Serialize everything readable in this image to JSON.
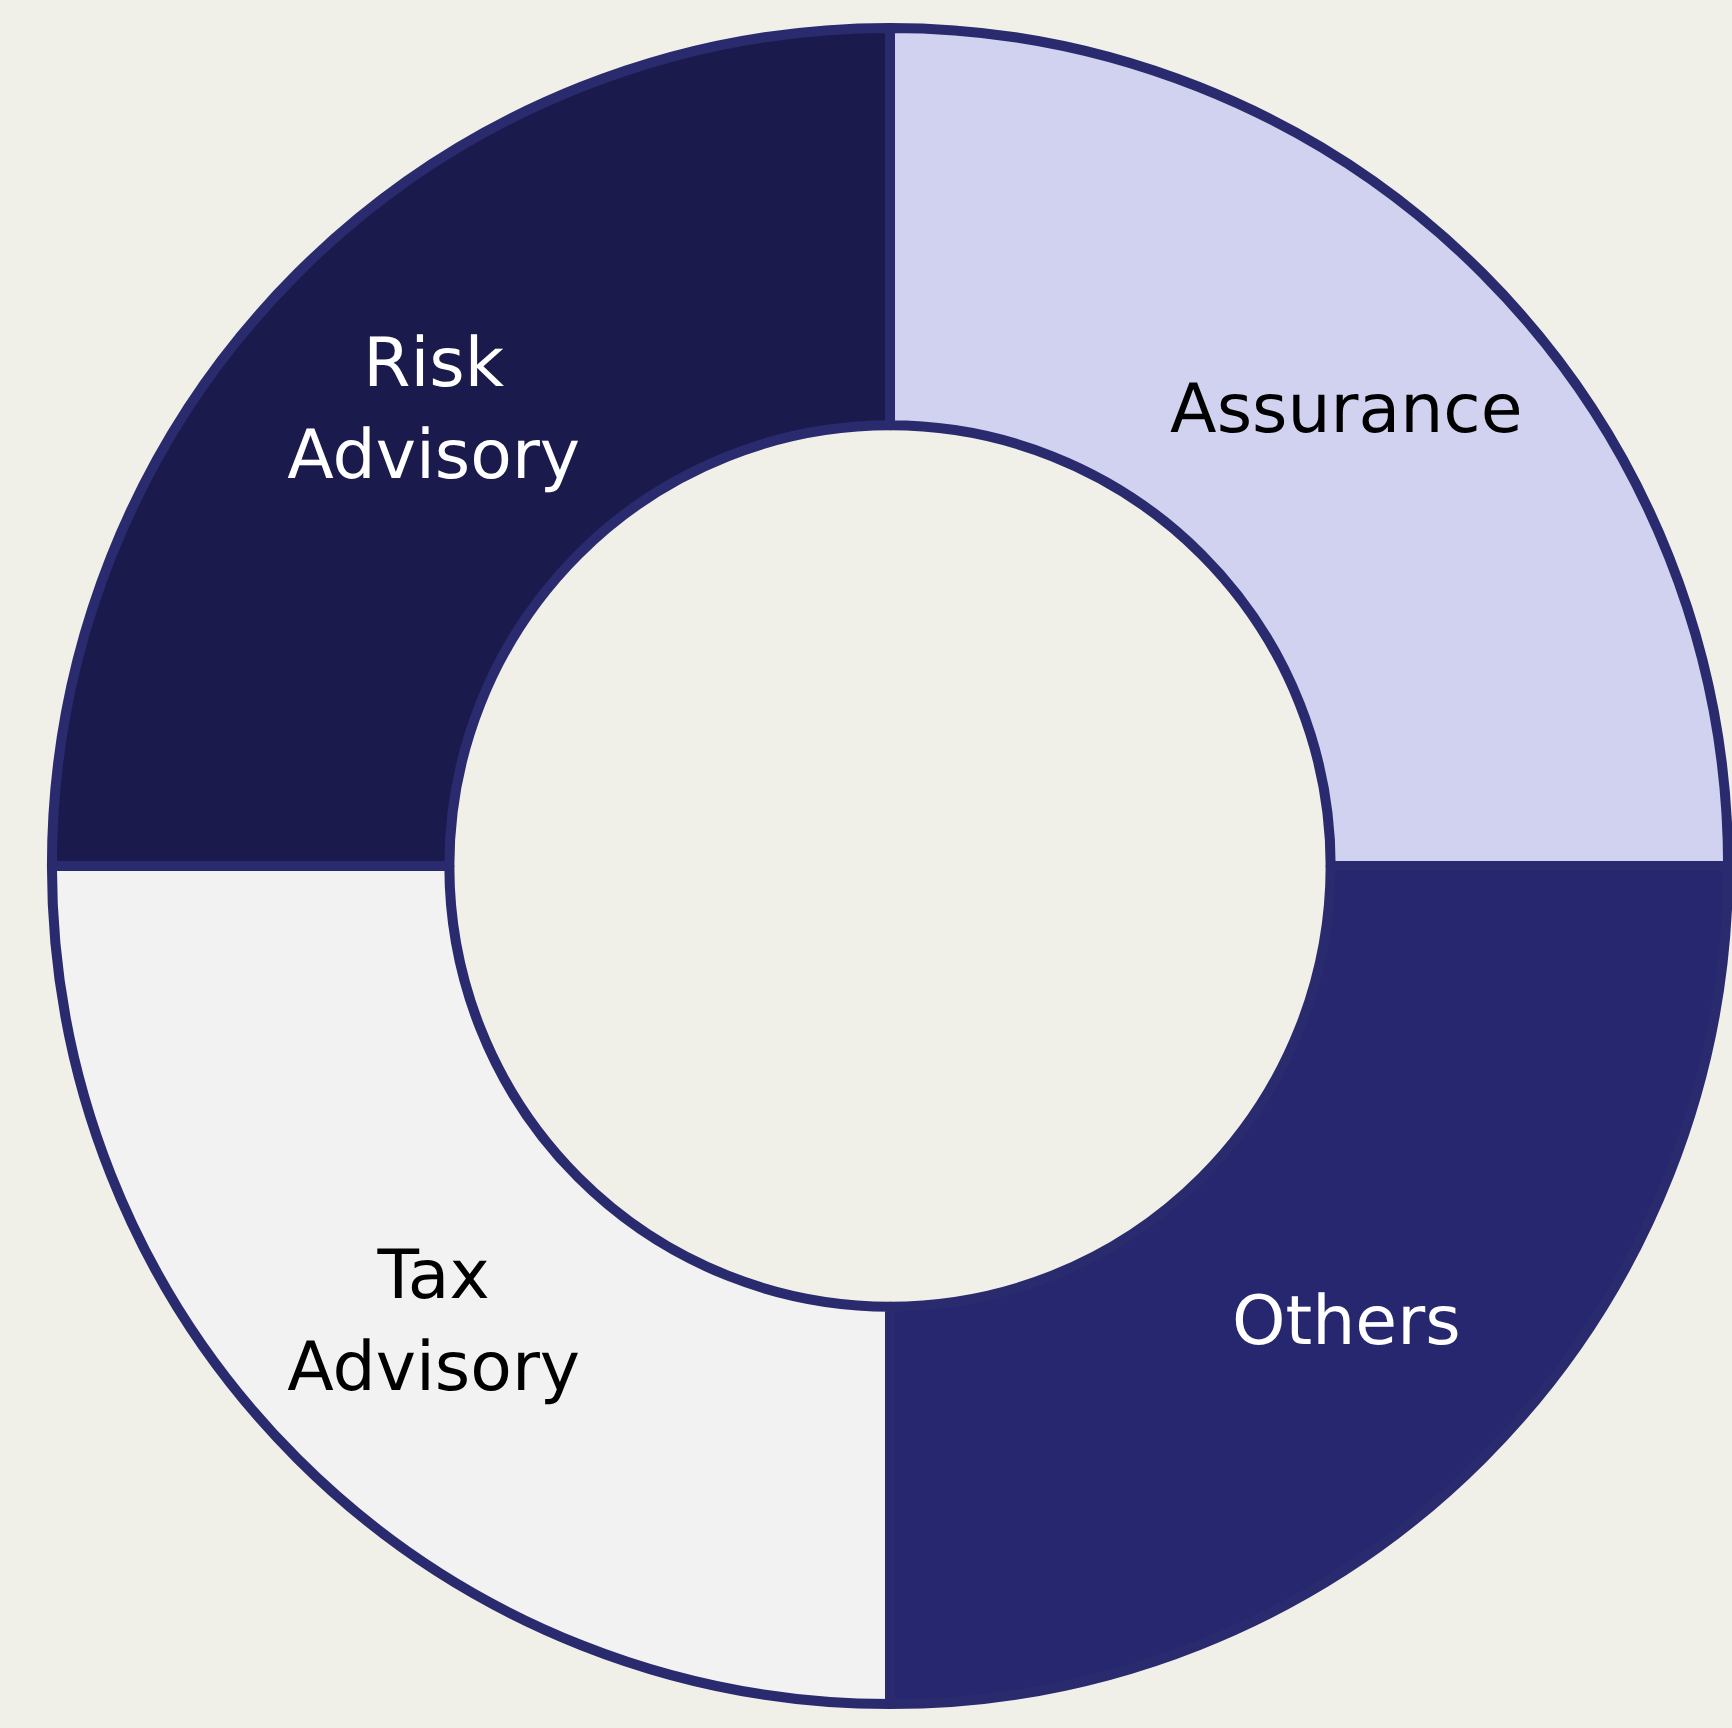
{
  "chart_data": {
    "type": "donut",
    "categories": [
      "Assurance",
      "Others",
      "Tax Advisory",
      "Risk Advisory"
    ],
    "values": [
      25,
      25,
      25,
      25
    ],
    "colors": [
      "#d1d1f0",
      "#272770",
      "#f2f2f2",
      "#1b1a4d"
    ],
    "legend": false
  }
}
